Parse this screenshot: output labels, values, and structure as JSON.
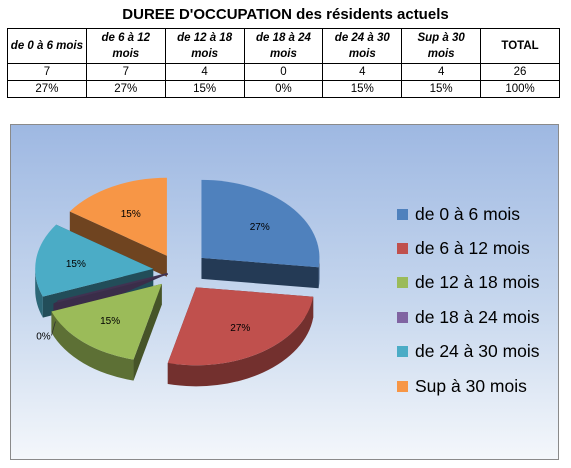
{
  "title": "DUREE D'OCCUPATION des résidents actuels",
  "table": {
    "headers": [
      "de 0 à 6 mois",
      "de 6 à 12 mois",
      "de 12 à 18 mois",
      "de 18 à 24 mois",
      "de 24 à 30 mois",
      "Sup à 30 mois",
      "TOTAL"
    ],
    "counts": [
      "7",
      "7",
      "4",
      "0",
      "4",
      "4",
      "26"
    ],
    "percents": [
      "27%",
      "27%",
      "15%",
      "0%",
      "15%",
      "15%",
      "100%"
    ]
  },
  "chart_data": {
    "type": "pie",
    "title": "",
    "labels": [
      "de 0 à 6 mois",
      "de 6 à 12 mois",
      "de 12 à 18 mois",
      "de 18 à 24 mois",
      "de 24 à 30 mois",
      "Sup à 30 mois"
    ],
    "values": [
      7,
      7,
      4,
      0,
      4,
      4
    ],
    "data_labels": [
      "27%",
      "27%",
      "15%",
      "0%",
      "15%",
      "15%"
    ],
    "colors": [
      "#4f81bd",
      "#c0504d",
      "#9bbb59",
      "#8064a2",
      "#4bacc6",
      "#f79646"
    ],
    "style": "3d-exploded",
    "legend_position": "right"
  }
}
